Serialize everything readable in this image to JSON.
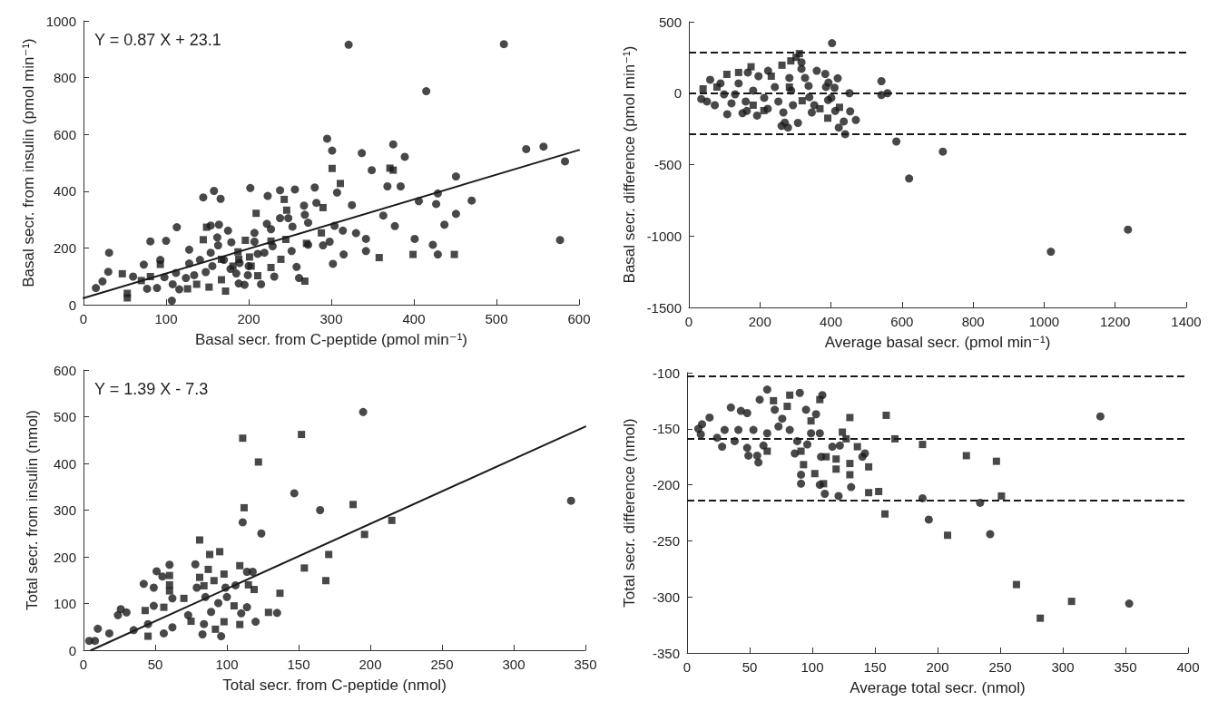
{
  "chart_data": [
    {
      "type": "scatter",
      "xlabel": "Basal secr. from C-peptide (pmol min⁻¹)",
      "ylabel": "Basal secr. from insulin (pmol min⁻¹)",
      "xlim": [
        0,
        600
      ],
      "xticks": [
        0,
        100,
        200,
        300,
        400,
        500,
        600
      ],
      "ylim": [
        0,
        1000
      ],
      "yticks": [
        0,
        200,
        400,
        600,
        800,
        1000
      ],
      "annotations": [
        "Y = 0.87 X + 23.1"
      ],
      "series": [
        {
          "color": "#1a1a1a",
          "marker": "circle",
          "x": [
            321,
            509,
            415,
            536,
            557,
            577,
            583,
            295,
            301,
            337,
            375,
            389,
            349,
            368,
            384,
            451,
            429,
            406,
            470,
            427,
            451,
            437,
            401,
            423,
            429,
            363,
            377,
            330,
            342,
            342,
            315,
            302,
            304,
            314,
            325,
            307,
            280,
            256,
            238,
            223,
            202,
            145,
            158,
            166,
            113,
            81,
            100,
            31,
            30,
            23,
            15,
            60,
            77,
            89,
            107,
            128,
            128,
            154,
            164,
            162,
            175,
            179,
            207,
            207,
            222,
            227,
            238,
            248,
            253,
            267,
            268,
            272,
            282,
            252,
            258,
            261,
            272,
            290,
            298,
            215,
            195,
            188,
            231,
            229,
            219,
            112,
            108,
            116,
            124,
            141,
            163,
            154,
            170,
            185,
            189,
            199,
            211,
            98,
            73,
            93,
            148,
            156,
            178,
            134,
            200
          ],
          "values": [
            916,
            918,
            752,
            548,
            557,
            228,
            505,
            585,
            543,
            534,
            565,
            521,
            474,
            417,
            417,
            452,
            392,
            365,
            367,
            355,
            320,
            282,
            232,
            211,
            177,
            314,
            277,
            252,
            232,
            189,
            177,
            144,
            278,
            261,
            351,
            395,
            413,
            406,
            403,
            383,
            411,
            378,
            401,
            373,
            273,
            223,
            225,
            183,
            116,
            82,
            59,
            99,
            56,
            59,
            14,
            194,
            145,
            279,
            282,
            237,
            261,
            220,
            253,
            222,
            285,
            266,
            305,
            305,
            275,
            349,
            317,
            289,
            359,
            189,
            133,
            94,
            211,
            209,
            222,
            72,
            70,
            75,
            99,
            206,
            183,
            112,
            72,
            54,
            94,
            158,
            209,
            183,
            158,
            110,
            147,
            104,
            179,
            97,
            141,
            158,
            115,
            136,
            126,
            104,
            136
          ]
        },
        {
          "color": "#1a1a1a",
          "marker": "square",
          "x": [
            301,
            311,
            290,
            371,
            375,
            358,
            399,
            449,
            268,
            245,
            243,
            246,
            209,
            227,
            196,
            145,
            149,
            167,
            187,
            188,
            201,
            239,
            227,
            211,
            203,
            181,
            172,
            152,
            137,
            126,
            93,
            81,
            70,
            47,
            53,
            53,
            288,
            270,
            167
          ],
          "values": [
            480,
            427,
            342,
            481,
            474,
            166,
            177,
            177,
            83,
            230,
            371,
            333,
            322,
            224,
            227,
            229,
            273,
            160,
            186,
            160,
            168,
            160,
            131,
            102,
            136,
            136,
            48,
            62,
            72,
            56,
            142,
            99,
            85,
            109,
            40,
            24,
            253,
            216,
            88
          ]
        },
        {
          "type": "line",
          "color": "#1a1a1a",
          "marker": "none",
          "line_style": "solid",
          "x": [
            0,
            600
          ],
          "values": [
            23,
            545
          ]
        }
      ]
    },
    {
      "type": "scatter",
      "xlabel": "Average basal secr. (pmol min⁻¹)",
      "ylabel": "Basal secr. difference (pmol min⁻¹)",
      "xlim": [
        0,
        1400
      ],
      "xticks": [
        0,
        200,
        400,
        600,
        800,
        1000,
        1200,
        1400
      ],
      "ylim": [
        -1500,
        500
      ],
      "yticks": [
        -1500,
        -1000,
        -500,
        0,
        500
      ],
      "ref_lines": [
        {
          "axis": "y",
          "value": 284,
          "color": "#1a1a1a",
          "line_style": "dashed"
        },
        {
          "axis": "y",
          "value": 0,
          "color": "#1a1a1a",
          "line_style": "dashed"
        },
        {
          "axis": "y",
          "value": -284,
          "color": "#1a1a1a",
          "line_style": "dashed"
        }
      ],
      "series": [
        {
          "color": "#1a1a1a",
          "marker": "circle",
          "x": [
            403,
            542,
            542,
            559,
            584,
            620,
            715,
            1019,
            1236,
            452,
            470,
            454,
            436,
            440,
            422,
            412,
            410,
            419,
            384,
            393,
            386,
            401,
            392,
            360,
            339,
            337,
            327,
            317,
            317,
            353,
            346,
            307,
            279,
            261,
            270,
            266,
            192,
            151,
            163,
            108,
            73,
            51,
            35,
            60,
            120,
            140,
            181,
            223,
            242,
            222,
            252,
            283,
            288,
            293,
            166,
            196,
            99,
            130,
            89,
            212,
            160
          ],
          "values": [
            350,
            84,
            -13,
            0,
            -338,
            -597,
            -409,
            -1110,
            -955,
            0,
            -188,
            -127,
            -198,
            -287,
            -241,
            -124,
            38,
            104,
            135,
            74,
            43,
            -33,
            -48,
            157,
            -28,
            51,
            107,
            170,
            216,
            -84,
            -135,
            -208,
            -241,
            -229,
            -206,
            -135,
            -157,
            -140,
            -124,
            -147,
            -84,
            -58,
            -41,
            94,
            -71,
            69,
            18,
            157,
            43,
            -109,
            -58,
            107,
            18,
            -84,
            145,
            119,
            -8,
            -8,
            69,
            -33,
            -58
          ]
        },
        {
          "color": "#1a1a1a",
          "marker": "square",
          "x": [
            40,
            311,
            302,
            287,
            262,
            175,
            107,
            391,
            424,
            369,
            319,
            211,
            181,
            79,
            140,
            232,
            283
          ],
          "values": [
            30,
            277,
            251,
            226,
            196,
            185,
            132,
            -175,
            -99,
            -109,
            -53,
            -122,
            -84,
            43,
            145,
            119,
            43
          ]
        }
      ]
    },
    {
      "type": "scatter",
      "xlabel": "Total secr. from C-peptide (nmol)",
      "ylabel": "Total secr. from insulin (nmol)",
      "xlim": [
        0,
        350
      ],
      "xticks": [
        0,
        50,
        100,
        150,
        200,
        250,
        300,
        350
      ],
      "ylim": [
        0,
        600
      ],
      "yticks": [
        0,
        100,
        200,
        300,
        400,
        500,
        600
      ],
      "annotations": [
        "Y = 1.39 X - 7.3"
      ],
      "series": [
        {
          "color": "#1a1a1a",
          "marker": "circle",
          "x": [
            195,
            147,
            165,
            111,
            124,
            60,
            78,
            51,
            55,
            42,
            49,
            62,
            79,
            106,
            114,
            118,
            99,
            100,
            114,
            110,
            120,
            135,
            83,
            84,
            96,
            26,
            24,
            30,
            10,
            4,
            8,
            18,
            35,
            45,
            49,
            56,
            62,
            73,
            85,
            89,
            94,
            340
          ],
          "values": [
            510,
            336,
            300,
            274,
            250,
            183,
            184,
            169,
            158,
            142,
            134,
            111,
            134,
            139,
            168,
            168,
            134,
            114,
            92,
            79,
            61,
            80,
            34,
            56,
            30,
            88,
            75,
            81,
            46,
            20,
            20,
            36,
            43,
            56,
            95,
            36,
            49,
            75,
            114,
            82,
            101,
            320
          ]
        },
        {
          "color": "#1a1a1a",
          "marker": "square",
          "x": [
            111,
            152,
            122,
            112,
            188,
            215,
            196,
            171,
            154,
            169,
            81,
            88,
            95,
            87,
            98,
            91,
            81,
            84,
            109,
            115,
            119,
            137,
            129,
            109,
            98,
            92,
            105,
            60,
            60,
            60,
            70,
            43,
            56,
            75,
            45
          ],
          "values": [
            454,
            462,
            403,
            305,
            312,
            278,
            248,
            205,
            176,
            149,
            236,
            205,
            211,
            173,
            163,
            149,
            156,
            138,
            181,
            140,
            130,
            122,
            81,
            55,
            61,
            45,
            95,
            160,
            140,
            127,
            111,
            85,
            92,
            62,
            30
          ]
        },
        {
          "type": "line",
          "color": "#1a1a1a",
          "marker": "none",
          "line_style": "solid",
          "x": [
            5.3,
            350
          ],
          "values": [
            0,
            479
          ]
        }
      ]
    },
    {
      "type": "scatter",
      "xlabel": "Average total secr. (nmol)",
      "ylabel": "Total secr. difference (nmol)",
      "xlim": [
        0,
        400
      ],
      "xticks": [
        0,
        50,
        100,
        150,
        200,
        250,
        300,
        350,
        400
      ],
      "ylim": [
        -350,
        -100
      ],
      "yticks": [
        -350,
        -300,
        -250,
        -200,
        -150,
        -100
      ],
      "ref_lines": [
        {
          "axis": "y",
          "value": -103,
          "color": "#1a1a1a",
          "line_style": "dashed"
        },
        {
          "axis": "y",
          "value": -159,
          "color": "#1a1a1a",
          "line_style": "dashed"
        },
        {
          "axis": "y",
          "value": -214,
          "color": "#1a1a1a",
          "line_style": "dashed"
        }
      ],
      "series": [
        {
          "color": "#1a1a1a",
          "marker": "circle",
          "x": [
            330,
            353,
            242,
            234,
            193,
            188,
            64,
            58,
            90,
            108,
            131,
            121,
            110,
            106,
            91,
            91,
            122,
            116,
            140,
            142,
            57,
            56,
            49,
            48,
            28,
            9,
            11,
            12,
            18,
            35,
            43,
            48,
            70,
            95,
            103,
            86,
            96,
            107,
            99,
            106,
            30,
            41,
            53,
            64,
            73,
            24,
            38,
            61,
            82,
            88,
            76
          ],
          "values": [
            -139,
            -306,
            -244,
            -216,
            -231,
            -212,
            -115,
            -124,
            -118,
            -120,
            -202,
            -210,
            -208,
            -200,
            -199,
            -191,
            -165,
            -166,
            -175,
            -172,
            -180,
            -174,
            -174,
            -167,
            -166,
            -150,
            -155,
            -146,
            -140,
            -131,
            -134,
            -136,
            -133,
            -133,
            -137,
            -172,
            -164,
            -175,
            -154,
            -154,
            -151,
            -151,
            -151,
            -154,
            -148,
            -158,
            -161,
            -165,
            -151,
            -161,
            -141
          ]
        },
        {
          "color": "#1a1a1a",
          "marker": "square",
          "x": [
            159,
            166,
            188,
            223,
            247,
            251,
            208,
            263,
            282,
            307,
            158,
            145,
            153,
            145,
            136,
            130,
            130,
            119,
            119,
            111,
            109,
            102,
            93,
            130,
            124,
            127,
            106,
            82,
            69,
            80,
            99,
            91,
            64
          ],
          "values": [
            -138,
            -159,
            -164,
            -174,
            -179,
            -210,
            -245,
            -289,
            -319,
            -304,
            -226,
            -207,
            -206,
            -184,
            -166,
            -181,
            -191,
            -177,
            -186,
            -175,
            -199,
            -190,
            -182,
            -140,
            -153,
            -159,
            -124,
            -120,
            -125,
            -130,
            -143,
            -170,
            -170
          ]
        }
      ]
    }
  ]
}
